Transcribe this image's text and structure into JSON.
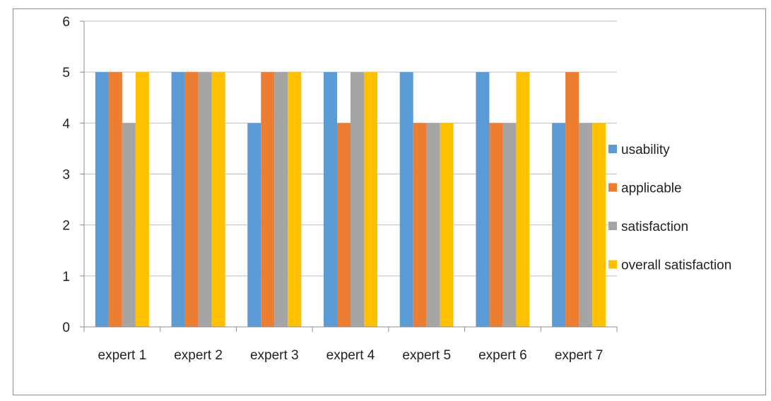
{
  "chart_data": {
    "type": "bar",
    "categories": [
      "expert 1",
      "expert 2",
      "expert 3",
      "expert 4",
      "expert 5",
      "expert 6",
      "expert 7"
    ],
    "series": [
      {
        "name": "usability",
        "color": "#5b9bd5",
        "values": [
          5,
          5,
          4,
          5,
          5,
          5,
          4
        ]
      },
      {
        "name": "applicable",
        "color": "#ed7d31",
        "values": [
          5,
          5,
          5,
          4,
          4,
          4,
          5
        ]
      },
      {
        "name": "satisfaction",
        "color": "#a5a5a5",
        "values": [
          4,
          5,
          5,
          5,
          4,
          4,
          4
        ]
      },
      {
        "name": "overall satisfaction",
        "color": "#ffc000",
        "values": [
          5,
          5,
          5,
          5,
          4,
          5,
          4
        ]
      }
    ],
    "ylim": [
      0,
      6
    ],
    "yticks": [
      0,
      1,
      2,
      3,
      4,
      5,
      6
    ],
    "grid": true,
    "legend_position": "right"
  }
}
